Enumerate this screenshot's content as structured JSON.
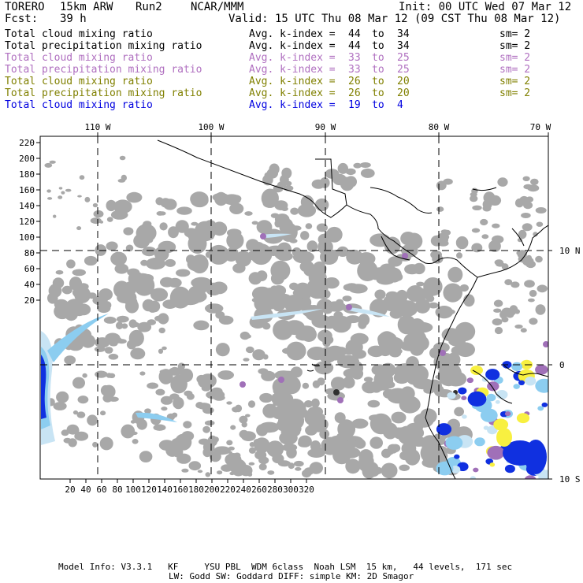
{
  "header": {
    "model": "TORERO",
    "resolution": "15km ARW",
    "run": "Run2",
    "org": "NCAR/MMM",
    "init": "Init: 00 UTC Wed 07 Mar 12",
    "fcst_label": "Fcst:",
    "fcst_value": "39 h",
    "valid": "Valid: 15 UTC Thu 08 Mar 12 (09 CST Thu 08 Mar 12)"
  },
  "legend": [
    {
      "field": "Total cloud mixing ratio",
      "index_label": "Avg. k-index =",
      "k_from": "44",
      "to": "to",
      "k_to": "34",
      "sm": "sm= 2",
      "color": "#000000"
    },
    {
      "field": "Total precipitation mixing ratio",
      "index_label": "Avg. k-index =",
      "k_from": "44",
      "to": "to",
      "k_to": "34",
      "sm": "sm= 2",
      "color": "#000000"
    },
    {
      "field": "Total cloud mixing ratio",
      "index_label": "Avg. k-index =",
      "k_from": "33",
      "to": "to",
      "k_to": "25",
      "sm": "sm= 2",
      "color": "#b070c0"
    },
    {
      "field": "Total precipitation mixing ratio",
      "index_label": "Avg. k-index =",
      "k_from": "33",
      "to": "to",
      "k_to": "25",
      "sm": "sm= 2",
      "color": "#b070c0"
    },
    {
      "field": "Total cloud mixing ratio",
      "index_label": "Avg. k-index =",
      "k_from": "26",
      "to": "to",
      "k_to": "20",
      "sm": "sm= 2",
      "color": "#808000"
    },
    {
      "field": "Total precipitation mixing ratio",
      "index_label": "Avg. k-index =",
      "k_from": "26",
      "to": "to",
      "k_to": "20",
      "sm": "sm= 2",
      "color": "#808000"
    },
    {
      "field": "Total cloud mixing ratio",
      "index_label": "Avg. k-index =",
      "k_from": "19",
      "to": "to",
      "k_to": "4",
      "sm": "",
      "color": "#0000e0"
    }
  ],
  "map": {
    "top_lon_labels": [
      "110 W",
      "100 W",
      "90 W",
      "80 W",
      "70 W"
    ],
    "right_lat_labels": [
      "10 N",
      "0",
      "10 S"
    ],
    "left_grid_labels": [
      "220",
      "200",
      "180",
      "160",
      "140",
      "120",
      "100",
      "80",
      "60",
      "40",
      "20"
    ],
    "bottom_grid_labels": [
      "20",
      "40",
      "60",
      "80",
      "100",
      "120",
      "140",
      "160",
      "180",
      "200",
      "220",
      "240",
      "260",
      "280",
      "300",
      "320"
    ],
    "colors": {
      "cloud_gray": "#a8a8a8",
      "pale_blue": "#c8e4f4",
      "light_blue": "#8ccdf0",
      "blue": "#1030e0",
      "purple": "#a070b8",
      "yellow": "#f8f040"
    }
  },
  "footer": {
    "line1": "Model Info: V3.3.1   KF     YSU PBL  WDM 6class  Noah LSM  15 km,   44 levels,  171 sec",
    "line2": "LW: Godd SW: Goddard DIFF: simple KM: 2D Smagor"
  }
}
